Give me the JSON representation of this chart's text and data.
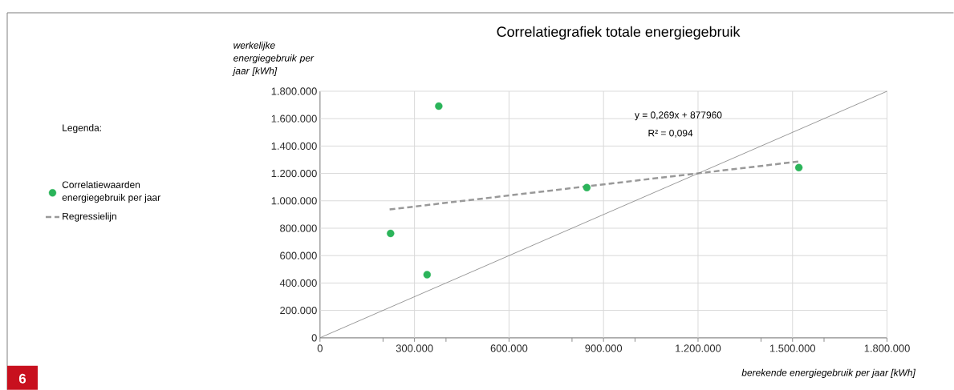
{
  "chart_data": {
    "type": "scatter",
    "title": "Correlatiegrafiek totale energiegebruik",
    "xlabel": "berekende energiegebruik per jaar [kWh]",
    "ylabel": "werkelijke energiegebruik per jaar [kWh]",
    "legend_title": "Legenda:",
    "legend": "left",
    "grid": true,
    "xlim": [
      0,
      1800000
    ],
    "ylim": [
      0,
      1800000
    ],
    "xticks": [
      0,
      {
        "value": 200000,
        "label": null
      },
      {
        "value": 300000,
        "label": "300.000"
      },
      {
        "value": 400000,
        "label": null
      },
      {
        "value": 600000,
        "label": "600.000"
      },
      {
        "value": 800000,
        "label": null
      },
      {
        "value": 900000,
        "label": "900.000"
      },
      {
        "value": 1000000,
        "label": null
      },
      {
        "value": 1200000,
        "label": "1.200.000"
      },
      {
        "value": 1400000,
        "label": null
      },
      {
        "value": 1500000,
        "label": "1.500.000"
      },
      {
        "value": 1600000,
        "label": null
      },
      {
        "value": 1800000,
        "label": "1.800.000"
      }
    ],
    "yticks": [
      0,
      {
        "value": 200000,
        "label": "200.000"
      },
      {
        "value": 400000,
        "label": "400.000"
      },
      {
        "value": 600000,
        "label": "600.000"
      },
      {
        "value": 800000,
        "label": "800.000"
      },
      {
        "value": 1000000,
        "label": "1.000.000"
      },
      {
        "value": 1200000,
        "label": "1.200.000"
      },
      {
        "value": 1400000,
        "label": "1.400.000"
      },
      {
        "value": 1600000,
        "label": "1.600.000"
      },
      {
        "value": 1800000,
        "label": "1.800.000"
      }
    ],
    "annotations": [
      "y = 0,269x + 877960",
      "R² = 0,094",
      "6"
    ],
    "series": [
      {
        "name": "Correlatiewaarden energiegebruik per jaar",
        "marker": "circle",
        "color": "#2bb45a",
        "x": [
          224000,
          340000,
          377000,
          847000,
          1520000
        ],
        "values": [
          762000,
          461000,
          1691000,
          1097000,
          1243000
        ]
      },
      {
        "name": "Regressielijn",
        "type": "line",
        "color": "#999999",
        "line_style": "dashed",
        "marker": "none",
        "x": [
          221000,
          1520000
        ],
        "values": [
          937000,
          1287000
        ]
      },
      {
        "type": "line",
        "color": "#808080",
        "line_style": "solid",
        "marker": "none",
        "x": [
          0,
          1800000
        ],
        "values": [
          0,
          1800000
        ]
      }
    ]
  }
}
